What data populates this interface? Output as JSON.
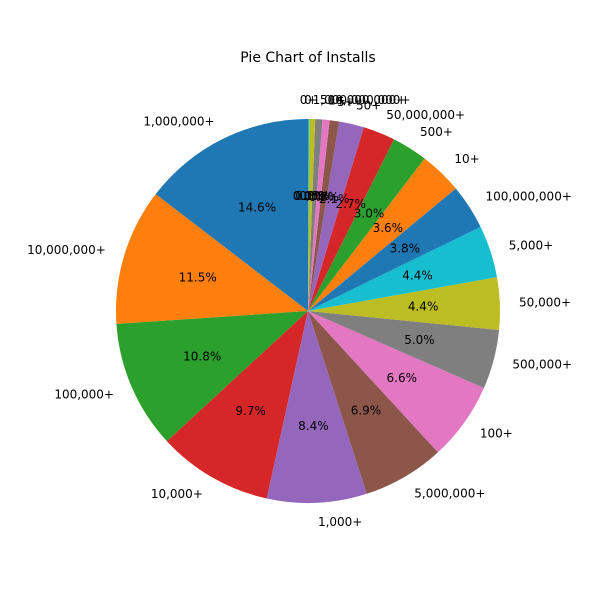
{
  "chart_data": {
    "type": "pie",
    "title": "Pie Chart of Installs",
    "start_angle_deg": 90,
    "direction": "counterclockwise",
    "slices": [
      {
        "label": "1,000,000+",
        "percent": 14.6,
        "pct_text": "14.6%",
        "color": "#1f77b4"
      },
      {
        "label": "10,000,000+",
        "percent": 11.5,
        "pct_text": "11.5%",
        "color": "#ff7f0e"
      },
      {
        "label": "100,000+",
        "percent": 10.8,
        "pct_text": "10.8%",
        "color": "#2ca02c"
      },
      {
        "label": "10,000+",
        "percent": 9.7,
        "pct_text": "9.7%",
        "color": "#d62728"
      },
      {
        "label": "1,000+",
        "percent": 8.4,
        "pct_text": "8.4%",
        "color": "#9467bd"
      },
      {
        "label": "5,000,000+",
        "percent": 6.9,
        "pct_text": "6.9%",
        "color": "#8c564b"
      },
      {
        "label": "100+",
        "percent": 6.6,
        "pct_text": "6.6%",
        "color": "#e377c2"
      },
      {
        "label": "500,000+",
        "percent": 5.0,
        "pct_text": "5.0%",
        "color": "#7f7f7f"
      },
      {
        "label": "50,000+",
        "percent": 4.4,
        "pct_text": "4.4%",
        "color": "#bcbd22"
      },
      {
        "label": "5,000+",
        "percent": 4.4,
        "pct_text": "4.4%",
        "color": "#17becf"
      },
      {
        "label": "100,000,000+",
        "percent": 3.8,
        "pct_text": "3.8%",
        "color": "#1f77b4"
      },
      {
        "label": "10+",
        "percent": 3.6,
        "pct_text": "3.6%",
        "color": "#ff7f0e"
      },
      {
        "label": "500+",
        "percent": 3.0,
        "pct_text": "3.0%",
        "color": "#2ca02c"
      },
      {
        "label": "50,000,000+",
        "percent": 2.7,
        "pct_text": "2.7%",
        "color": "#d62728"
      },
      {
        "label": "50+",
        "percent": 2.1,
        "pct_text": "2.1%",
        "color": "#9467bd"
      },
      {
        "label": "5+",
        "percent": 0.8,
        "pct_text": "0.8%",
        "color": "#8c564b"
      },
      {
        "label": "1+",
        "percent": 0.6,
        "pct_text": "0.6%",
        "color": "#e377c2"
      },
      {
        "label": "500,000,000+",
        "percent": 0.6,
        "pct_text": "0.6%",
        "color": "#7f7f7f"
      },
      {
        "label": "1,000,000,000+",
        "percent": 0.5,
        "pct_text": "0.5%",
        "color": "#bcbd22"
      },
      {
        "label": "0+",
        "percent": 0.1,
        "pct_text": "0.1%",
        "color": "#17becf"
      },
      {
        "label": "0",
        "percent": 0.0,
        "pct_text": "0.0%",
        "color": "#1f77b4"
      }
    ]
  }
}
